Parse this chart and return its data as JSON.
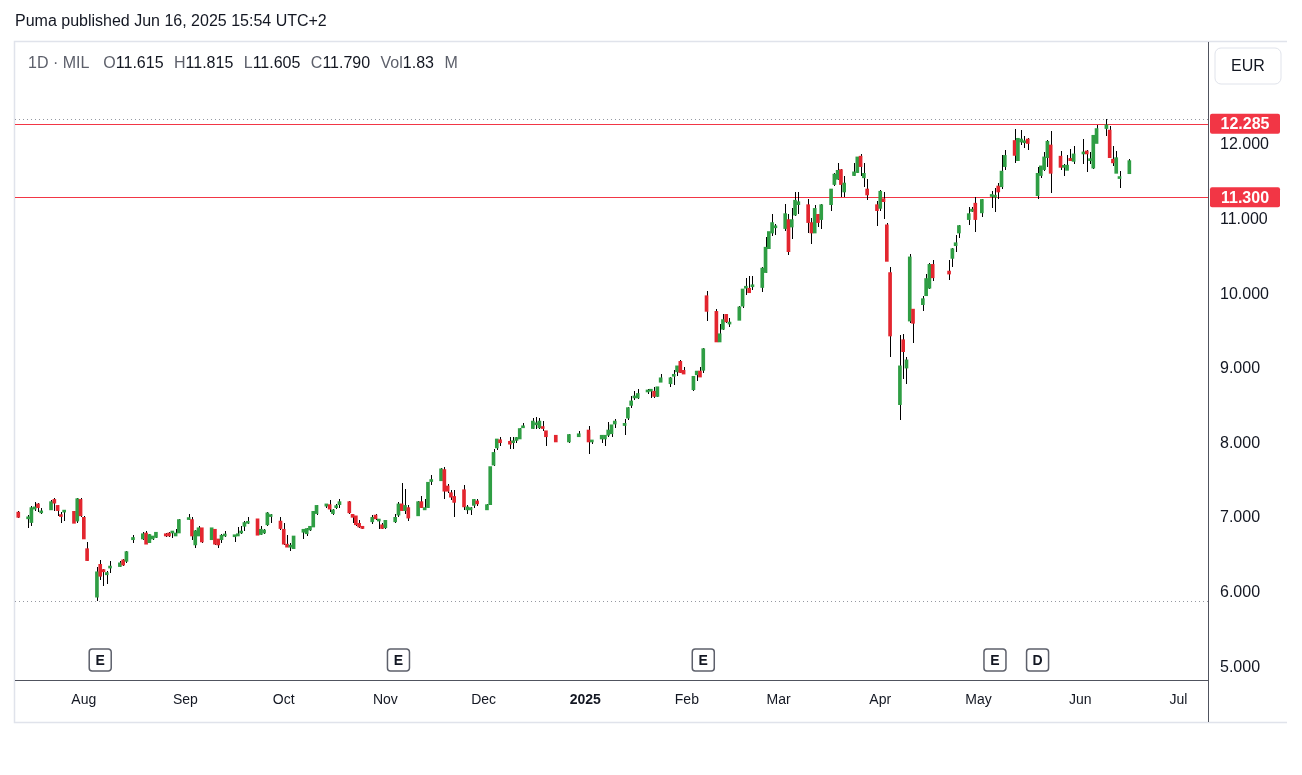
{
  "chart_data": {
    "type": "candlestick",
    "title": "1D · MIL",
    "subtitle": "O11.615 H11.815 L11.605 C11.790 Vol1.83 M",
    "ylabel": "EUR",
    "annotations": [
      "Puma published Jun 16, 2025 15:54 UTC+2",
      {
        "text": "E",
        "x": "2024-08-06"
      },
      {
        "text": "E",
        "x": "2024-11-05"
      },
      {
        "text": "E",
        "x": "2025-02-06"
      },
      {
        "text": "E",
        "x": "2025-05-06"
      },
      {
        "text": "D",
        "x": "2025-05-19"
      }
    ],
    "x": [
      "2024-07-12",
      "2024-07-15",
      "2024-07-16",
      "2024-07-17",
      "2024-07-18",
      "2024-07-19",
      "2024-07-22",
      "2024-07-23",
      "2024-07-24",
      "2024-07-25",
      "2024-07-26",
      "2024-07-29",
      "2024-07-30",
      "2024-07-31",
      "2024-08-01",
      "2024-08-02",
      "2024-08-05",
      "2024-08-06",
      "2024-08-07",
      "2024-08-08",
      "2024-08-09",
      "2024-08-12",
      "2024-08-13",
      "2024-08-14",
      "2024-08-16",
      "2024-08-19",
      "2024-08-20",
      "2024-08-21",
      "2024-08-22",
      "2024-08-23",
      "2024-08-26",
      "2024-08-27",
      "2024-08-28",
      "2024-08-29",
      "2024-08-30",
      "2024-09-02",
      "2024-09-03",
      "2024-09-04",
      "2024-09-05",
      "2024-09-06",
      "2024-09-09",
      "2024-09-10",
      "2024-09-11",
      "2024-09-12",
      "2024-09-13",
      "2024-09-16",
      "2024-09-17",
      "2024-09-18",
      "2024-09-19",
      "2024-09-20",
      "2024-09-23",
      "2024-09-24",
      "2024-09-25",
      "2024-09-26",
      "2024-09-27",
      "2024-09-30",
      "2024-10-01",
      "2024-10-02",
      "2024-10-03",
      "2024-10-04",
      "2024-10-07",
      "2024-10-08",
      "2024-10-09",
      "2024-10-10",
      "2024-10-11",
      "2024-10-14",
      "2024-10-15",
      "2024-10-16",
      "2024-10-17",
      "2024-10-18",
      "2024-10-21",
      "2024-10-22",
      "2024-10-23",
      "2024-10-24",
      "2024-10-25",
      "2024-10-28",
      "2024-10-29",
      "2024-10-30",
      "2024-10-31",
      "2024-11-01",
      "2024-11-04",
      "2024-11-05",
      "2024-11-06",
      "2024-11-07",
      "2024-11-08",
      "2024-11-11",
      "2024-11-12",
      "2024-11-13",
      "2024-11-14",
      "2024-11-15",
      "2024-11-18",
      "2024-11-19",
      "2024-11-20",
      "2024-11-21",
      "2024-11-22",
      "2024-11-25",
      "2024-11-26",
      "2024-11-27",
      "2024-11-28",
      "2024-11-29",
      "2024-12-02",
      "2024-12-03",
      "2024-12-04",
      "2024-12-05",
      "2024-12-06",
      "2024-12-09",
      "2024-12-10",
      "2024-12-11",
      "2024-12-12",
      "2024-12-13",
      "2024-12-16",
      "2024-12-17",
      "2024-12-18",
      "2024-12-19",
      "2024-12-20",
      "2024-12-23",
      "2024-12-27",
      "2024-12-30",
      "2025-01-02",
      "2025-01-03",
      "2025-01-06",
      "2025-01-07",
      "2025-01-08",
      "2025-01-09",
      "2025-01-10",
      "2025-01-13",
      "2025-01-14",
      "2025-01-15",
      "2025-01-16",
      "2025-01-17",
      "2025-01-20",
      "2025-01-21",
      "2025-01-22",
      "2025-01-23",
      "2025-01-24",
      "2025-01-27",
      "2025-01-28",
      "2025-01-29",
      "2025-01-30",
      "2025-01-31",
      "2025-02-03",
      "2025-02-04",
      "2025-02-05",
      "2025-02-06",
      "2025-02-07",
      "2025-02-10",
      "2025-02-11",
      "2025-02-12",
      "2025-02-13",
      "2025-02-14",
      "2025-02-17",
      "2025-02-18",
      "2025-02-19",
      "2025-02-20",
      "2025-02-21",
      "2025-02-24",
      "2025-02-25",
      "2025-02-26",
      "2025-02-27",
      "2025-02-28",
      "2025-03-03",
      "2025-03-04",
      "2025-03-05",
      "2025-03-06",
      "2025-03-07",
      "2025-03-10",
      "2025-03-11",
      "2025-03-12",
      "2025-03-13",
      "2025-03-14",
      "2025-03-17",
      "2025-03-18",
      "2025-03-19",
      "2025-03-20",
      "2025-03-21",
      "2025-03-24",
      "2025-03-25",
      "2025-03-26",
      "2025-03-27",
      "2025-03-28",
      "2025-03-31",
      "2025-04-01",
      "2025-04-02",
      "2025-04-03",
      "2025-04-04",
      "2025-04-07",
      "2025-04-08",
      "2025-04-09",
      "2025-04-10",
      "2025-04-11",
      "2025-04-14",
      "2025-04-15",
      "2025-04-16",
      "2025-04-17",
      "2025-04-22",
      "2025-04-23",
      "2025-04-24",
      "2025-04-25",
      "2025-04-28",
      "2025-04-29",
      "2025-04-30",
      "2025-05-02",
      "2025-05-05",
      "2025-05-06",
      "2025-05-07",
      "2025-05-08",
      "2025-05-09",
      "2025-05-12",
      "2025-05-13",
      "2025-05-14",
      "2025-05-15",
      "2025-05-16",
      "2025-05-19",
      "2025-05-20",
      "2025-05-21",
      "2025-05-22",
      "2025-05-23",
      "2025-05-26",
      "2025-05-27",
      "2025-05-28",
      "2025-05-29",
      "2025-05-30",
      "2025-06-02",
      "2025-06-03",
      "2025-06-04",
      "2025-06-05",
      "2025-06-06",
      "2025-06-09",
      "2025-06-10",
      "2025-06-11",
      "2025-06-12",
      "2025-06-13",
      "2025-06-16"
    ],
    "ohlc": [
      [
        7.08,
        7.09,
        7.0,
        7.01
      ],
      [
        6.99,
        7.04,
        6.87,
        7.0
      ],
      [
        6.94,
        7.16,
        6.9,
        7.14
      ],
      [
        7.12,
        7.21,
        7.1,
        7.15
      ],
      [
        7.19,
        7.2,
        7.08,
        7.14
      ],
      [
        7.07,
        7.14,
        7.06,
        7.08
      ],
      [
        7.11,
        7.24,
        7.11,
        7.22
      ],
      [
        7.25,
        7.27,
        7.1,
        7.2
      ],
      [
        7.17,
        7.17,
        7.03,
        7.1
      ],
      [
        7.03,
        7.08,
        6.93,
        7.02
      ],
      [
        7.08,
        7.09,
        6.96,
        7.09
      ],
      [
        7.09,
        7.1,
        6.93,
        6.93
      ],
      [
        6.96,
        7.27,
        6.93,
        7.26
      ],
      [
        7.25,
        7.27,
        7.02,
        7.03
      ],
      [
        7.01,
        7.03,
        6.72,
        6.72
      ],
      [
        6.59,
        6.68,
        6.42,
        6.43
      ],
      [
        5.94,
        6.34,
        5.89,
        6.28
      ],
      [
        6.38,
        6.44,
        6.17,
        6.22
      ],
      [
        6.31,
        6.32,
        6.09,
        6.28
      ],
      [
        6.24,
        6.29,
        6.11,
        6.27
      ],
      [
        6.33,
        6.42,
        6.27,
        6.34
      ],
      [
        6.35,
        6.42,
        6.34,
        6.4
      ],
      [
        6.44,
        6.45,
        6.36,
        6.37
      ],
      [
        6.42,
        6.56,
        6.4,
        6.55
      ],
      [
        6.71,
        6.77,
        6.67,
        6.74
      ],
      [
        6.72,
        6.82,
        6.71,
        6.79
      ],
      [
        6.8,
        6.83,
        6.65,
        6.65
      ],
      [
        6.67,
        6.78,
        6.66,
        6.78
      ],
      [
        6.72,
        6.76,
        6.71,
        6.76
      ],
      [
        6.74,
        6.82,
        6.73,
        6.81
      ],
      [
        6.79,
        6.8,
        6.75,
        6.76
      ],
      [
        6.8,
        6.81,
        6.75,
        6.76
      ],
      [
        6.8,
        6.81,
        6.73,
        6.8
      ],
      [
        6.76,
        6.85,
        6.76,
        6.8
      ],
      [
        6.8,
        6.99,
        6.8,
        6.98
      ],
      [
        6.98,
        7.06,
        6.98,
        6.99
      ],
      [
        6.98,
        7.02,
        6.7,
        6.76
      ],
      [
        6.64,
        6.84,
        6.6,
        6.83
      ],
      [
        6.76,
        6.89,
        6.76,
        6.87
      ],
      [
        6.87,
        6.87,
        6.67,
        6.68
      ],
      [
        6.71,
        6.87,
        6.7,
        6.87
      ],
      [
        6.85,
        6.85,
        6.64,
        6.65
      ],
      [
        6.72,
        6.72,
        6.6,
        6.64
      ],
      [
        6.71,
        6.78,
        6.67,
        6.77
      ],
      [
        6.76,
        6.83,
        6.75,
        6.77
      ],
      [
        6.75,
        6.76,
        6.68,
        6.75
      ],
      [
        6.76,
        6.88,
        6.76,
        6.79
      ],
      [
        6.8,
        6.89,
        6.79,
        6.8
      ],
      [
        6.89,
        6.96,
        6.83,
        6.94
      ],
      [
        6.93,
        7.01,
        6.92,
        6.94
      ],
      [
        6.99,
        6.99,
        6.77,
        6.77
      ],
      [
        6.78,
        6.89,
        6.77,
        6.85
      ],
      [
        6.8,
        6.86,
        6.79,
        6.84
      ],
      [
        6.91,
        7.08,
        6.89,
        7.07
      ],
      [
        7.02,
        7.05,
        6.94,
        7.02
      ],
      [
        6.96,
        7.01,
        6.84,
        6.86
      ],
      [
        6.85,
        6.93,
        6.64,
        6.65
      ],
      [
        6.65,
        6.77,
        6.61,
        6.61
      ],
      [
        6.61,
        6.67,
        6.56,
        6.61
      ],
      [
        6.59,
        6.76,
        6.58,
        6.76
      ],
      [
        6.81,
        6.86,
        6.72,
        6.85
      ],
      [
        6.79,
        6.87,
        6.76,
        6.86
      ],
      [
        6.84,
        6.9,
        6.83,
        6.89
      ],
      [
        6.88,
        7.09,
        6.88,
        7.09
      ],
      [
        7.06,
        7.18,
        7.04,
        7.17
      ],
      [
        7.16,
        7.19,
        7.14,
        7.19
      ],
      [
        7.18,
        7.24,
        7.08,
        7.12
      ],
      [
        7.06,
        7.12,
        7.04,
        7.11
      ],
      [
        7.14,
        7.19,
        7.12,
        7.14
      ],
      [
        7.18,
        7.26,
        7.14,
        7.22
      ],
      [
        7.22,
        7.23,
        7.06,
        7.07
      ],
      [
        7.05,
        7.05,
        6.93,
        7.01
      ],
      [
        7.03,
        7.03,
        6.9,
        6.91
      ],
      [
        6.93,
        6.98,
        6.87,
        6.88
      ],
      [
        6.89,
        6.9,
        6.85,
        6.86
      ],
      [
        6.95,
        7.04,
        6.92,
        7.01
      ],
      [
        7.04,
        7.06,
        6.98,
        6.99
      ],
      [
        6.96,
        6.97,
        6.86,
        6.96
      ],
      [
        6.91,
        6.94,
        6.85,
        6.86
      ],
      [
        6.87,
        6.98,
        6.86,
        6.97
      ],
      [
        6.95,
        7.05,
        6.94,
        7.01
      ],
      [
        7.04,
        7.22,
        7.02,
        7.19
      ],
      [
        7.19,
        7.47,
        7.1,
        7.1
      ],
      [
        7.1,
        7.39,
        7.06,
        7.17
      ],
      [
        7.14,
        7.17,
        6.96,
        7.0
      ],
      [
        7.03,
        7.23,
        7.03,
        7.22
      ],
      [
        7.22,
        7.3,
        7.14,
        7.14
      ],
      [
        7.11,
        7.26,
        7.11,
        7.14
      ],
      [
        7.14,
        7.48,
        7.14,
        7.48
      ],
      [
        7.49,
        7.58,
        7.44,
        7.5
      ],
      [
        7.5,
        7.67,
        7.5,
        7.66
      ],
      [
        7.65,
        7.68,
        7.25,
        7.36
      ],
      [
        7.43,
        7.46,
        7.33,
        7.36
      ],
      [
        7.34,
        7.37,
        7.24,
        7.28
      ],
      [
        7.29,
        7.37,
        7.02,
        7.21
      ],
      [
        7.38,
        7.44,
        7.11,
        7.15
      ],
      [
        7.11,
        7.18,
        7.06,
        7.15
      ],
      [
        7.11,
        7.15,
        7.04,
        7.14
      ],
      [
        7.17,
        7.25,
        7.14,
        7.25
      ],
      [
        7.23,
        7.25,
        7.16,
        7.19
      ],
      [
        7.11,
        7.19,
        7.11,
        7.18
      ],
      [
        7.18,
        7.69,
        7.18,
        7.69
      ],
      [
        7.71,
        7.92,
        7.7,
        7.88
      ],
      [
        7.94,
        8.06,
        7.91,
        8.06
      ],
      [
        8.05,
        8.08,
        7.97,
        8.01
      ],
      [
        8.03,
        8.09,
        7.92,
        7.99
      ],
      [
        8.01,
        8.09,
        7.92,
        8.02
      ],
      [
        8.04,
        8.09,
        8.01,
        8.08
      ],
      [
        8.06,
        8.21,
        8.06,
        8.2
      ],
      [
        8.21,
        8.27,
        8.21,
        8.22
      ],
      [
        8.2,
        8.34,
        8.2,
        8.3
      ],
      [
        8.25,
        8.36,
        8.2,
        8.26
      ],
      [
        8.21,
        8.34,
        8.2,
        8.3
      ],
      [
        8.21,
        8.3,
        8.17,
        8.2
      ],
      [
        8.17,
        8.17,
        7.96,
        8.09
      ],
      [
        8.11,
        8.11,
        8.02,
        8.02
      ],
      [
        8.02,
        8.13,
        8.01,
        8.12
      ],
      [
        8.09,
        8.17,
        8.08,
        8.13
      ],
      [
        8.18,
        8.23,
        7.86,
        8.02
      ],
      [
        8.02,
        8.05,
        7.99,
        8.03
      ],
      [
        8.06,
        8.11,
        8.0,
        8.11
      ],
      [
        8.06,
        8.11,
        7.96,
        8.11
      ],
      [
        8.11,
        8.29,
        8.09,
        8.18
      ],
      [
        8.13,
        8.25,
        8.08,
        8.25
      ],
      [
        8.26,
        8.33,
        8.21,
        8.3
      ],
      [
        8.24,
        8.33,
        8.11,
        8.27
      ],
      [
        8.34,
        8.49,
        8.31,
        8.48
      ],
      [
        8.51,
        8.63,
        8.48,
        8.57
      ],
      [
        8.61,
        8.7,
        8.58,
        8.62
      ],
      [
        8.61,
        8.73,
        8.6,
        8.67
      ],
      [
        8.69,
        8.73,
        8.66,
        8.7
      ],
      [
        8.7,
        8.73,
        8.61,
        8.7
      ],
      [
        8.7,
        8.76,
        8.61,
        8.63
      ],
      [
        8.63,
        8.76,
        8.62,
        8.76
      ],
      [
        8.82,
        8.93,
        8.82,
        8.88
      ],
      [
        8.8,
        8.89,
        8.76,
        8.88
      ],
      [
        8.9,
        8.98,
        8.78,
        8.91
      ],
      [
        8.96,
        9.04,
        8.9,
        9.04
      ],
      [
        9.1,
        9.12,
        8.94,
        8.95
      ],
      [
        8.98,
        9.03,
        8.93,
        8.93
      ],
      [
        8.72,
        8.91,
        8.7,
        8.9
      ],
      [
        8.92,
        8.97,
        8.84,
        8.97
      ],
      [
        8.97,
        9.03,
        8.89,
        8.89
      ],
      [
        8.98,
        9.28,
        8.94,
        9.27
      ],
      [
        9.98,
        10.04,
        9.64,
        9.77
      ],
      [
        9.77,
        9.8,
        9.36,
        9.36
      ],
      [
        9.36,
        9.6,
        9.36,
        9.47
      ],
      [
        9.53,
        9.74,
        9.52,
        9.66
      ],
      [
        9.73,
        9.73,
        9.61,
        9.63
      ],
      [
        9.6,
        9.68,
        9.56,
        9.61
      ],
      [
        9.65,
        9.84,
        9.65,
        9.83
      ],
      [
        9.84,
        10.07,
        9.82,
        10.07
      ],
      [
        10.08,
        10.22,
        9.99,
        10.08
      ],
      [
        10.08,
        10.24,
        10.01,
        10.02
      ],
      [
        10.1,
        10.24,
        10.06,
        10.1
      ],
      [
        10.09,
        10.37,
        10.03,
        10.35
      ],
      [
        10.29,
        10.77,
        10.29,
        10.63
      ],
      [
        10.61,
        10.84,
        10.61,
        10.84
      ],
      [
        10.82,
        11.08,
        10.78,
        10.96
      ],
      [
        10.89,
        10.94,
        10.8,
        10.89
      ],
      [
        10.88,
        11.21,
        10.85,
        11.08
      ],
      [
        11.0,
        11.07,
        10.52,
        10.57
      ],
      [
        10.9,
        11.15,
        10.74,
        11.0
      ],
      [
        11.06,
        11.37,
        11.05,
        11.26
      ],
      [
        11.2,
        11.37,
        11.07,
        11.24
      ],
      [
        11.2,
        11.28,
        10.82,
        10.96
      ],
      [
        10.96,
        11.02,
        10.67,
        10.82
      ],
      [
        10.82,
        11.2,
        10.82,
        11.15
      ],
      [
        11.07,
        11.07,
        10.9,
        10.96
      ],
      [
        11.0,
        11.21,
        10.87,
        11.2
      ],
      [
        11.2,
        11.41,
        11.11,
        11.41
      ],
      [
        11.47,
        11.63,
        11.45,
        11.61
      ],
      [
        11.54,
        11.76,
        11.53,
        11.66
      ],
      [
        11.67,
        11.68,
        11.3,
        11.47
      ],
      [
        11.37,
        11.58,
        11.3,
        11.49
      ],
      [
        11.59,
        11.76,
        11.58,
        11.64
      ],
      [
        11.63,
        11.84,
        11.63,
        11.84
      ],
      [
        11.85,
        11.88,
        11.59,
        11.71
      ],
      [
        11.56,
        11.76,
        11.44,
        11.62
      ],
      [
        11.41,
        11.54,
        11.26,
        11.33
      ],
      [
        11.2,
        11.25,
        10.91,
        11.12
      ],
      [
        11.15,
        11.39,
        11.11,
        11.38
      ],
      [
        11.28,
        11.37,
        11.01,
        11.24
      ],
      [
        10.93,
        10.95,
        10.44,
        10.44
      ],
      [
        10.29,
        10.36,
        9.16,
        9.44
      ],
      [
        8.52,
        9.45,
        8.31,
        9.04
      ],
      [
        9.39,
        9.47,
        8.87,
        9.23
      ],
      [
        9.01,
        9.16,
        8.8,
        9.12
      ],
      [
        9.64,
        10.54,
        9.61,
        10.5
      ],
      [
        9.8,
        9.8,
        9.35,
        9.61
      ],
      [
        9.86,
        9.97,
        9.77,
        9.94
      ],
      [
        9.98,
        10.27,
        9.98,
        10.21
      ],
      [
        10.08,
        10.42,
        10.07,
        10.4
      ],
      [
        10.4,
        10.46,
        10.18,
        10.22
      ],
      [
        10.31,
        10.46,
        10.19,
        10.27
      ],
      [
        10.48,
        10.62,
        10.37,
        10.61
      ],
      [
        10.65,
        10.79,
        10.57,
        10.69
      ],
      [
        10.82,
        10.93,
        10.75,
        10.92
      ],
      [
        11.0,
        11.17,
        10.93,
        11.08
      ],
      [
        11.11,
        11.17,
        11.1,
        11.14
      ],
      [
        11.22,
        11.3,
        10.84,
        11.0
      ],
      [
        11.09,
        11.28,
        11.04,
        11.27
      ],
      [
        11.31,
        11.38,
        11.16,
        11.31
      ],
      [
        11.3,
        11.42,
        11.1,
        11.31
      ],
      [
        11.45,
        11.49,
        11.27,
        11.37
      ],
      [
        11.44,
        11.87,
        11.41,
        11.65
      ],
      [
        11.71,
        11.93,
        11.66,
        11.86
      ],
      [
        12.06,
        12.21,
        11.76,
        11.86
      ],
      [
        11.79,
        12.09,
        11.78,
        12.09
      ],
      [
        12.04,
        12.2,
        12.0,
        12.08
      ],
      [
        12.03,
        12.12,
        11.96,
        12.04
      ],
      [
        12.08,
        12.1,
        11.93,
        12.02
      ],
      [
        11.32,
        11.71,
        11.28,
        11.62
      ],
      [
        11.59,
        11.72,
        11.56,
        11.72
      ],
      [
        11.67,
        11.9,
        11.65,
        11.84
      ],
      [
        11.83,
        12.06,
        11.71,
        12.05
      ],
      [
        12.0,
        12.19,
        11.36,
        11.62
      ],
      [
        11.85,
        11.92,
        11.66,
        11.7
      ],
      [
        11.7,
        11.74,
        11.59,
        11.71
      ],
      [
        11.66,
        11.87,
        11.66,
        11.73
      ],
      [
        11.82,
        11.94,
        11.78,
        11.79
      ],
      [
        11.78,
        11.99,
        11.75,
        11.88
      ],
      [
        11.88,
        12.08,
        11.75,
        11.88
      ],
      [
        11.92,
        11.93,
        11.64,
        11.88
      ],
      [
        11.79,
        11.91,
        11.75,
        11.8
      ],
      [
        11.69,
        12.13,
        11.68,
        12.13
      ],
      [
        12.02,
        12.27,
        12.02,
        12.22
      ],
      [
        12.22,
        12.35,
        12.12,
        12.27
      ],
      [
        12.2,
        12.25,
        11.83,
        11.83
      ],
      [
        11.81,
        11.98,
        11.72,
        11.76
      ],
      [
        11.62,
        11.92,
        11.62,
        11.83
      ],
      [
        11.55,
        11.65,
        11.42,
        11.56
      ],
      [
        11.615,
        11.815,
        11.605,
        11.79
      ]
    ],
    "xlim": [
      "2024-07-11",
      "2025-07-10"
    ],
    "xticks": [
      {
        "value": "2024-08-01",
        "label": "Aug"
      },
      {
        "value": "2024-09-01",
        "label": "Sep"
      },
      {
        "value": "2024-10-01",
        "label": "Oct"
      },
      {
        "value": "2024-11-01",
        "label": "Nov"
      },
      {
        "value": "2024-12-01",
        "label": "Dec"
      },
      {
        "value": "2025-01-01",
        "label": "2025"
      },
      {
        "value": "2025-02-01",
        "label": "Feb"
      },
      {
        "value": "2025-03-01",
        "label": "Mar"
      },
      {
        "value": "2025-04-01",
        "label": "Apr"
      },
      {
        "value": "2025-05-01",
        "label": "May"
      },
      {
        "value": "2025-06-01",
        "label": "Jun"
      },
      {
        "value": "2025-07-01",
        "label": "Jul"
      }
    ],
    "ylim": [
      4.83,
      13.38
    ],
    "yticks": [
      {
        "value": 5,
        "label": "5.000"
      },
      {
        "value": 6,
        "label": "6.000"
      },
      {
        "value": 7,
        "label": "7.000"
      },
      {
        "value": 8,
        "label": "8.000"
      },
      {
        "value": 9,
        "label": "9.000"
      },
      {
        "value": 10,
        "label": "10.000"
      },
      {
        "value": 11,
        "label": "11.000"
      },
      {
        "value": 12,
        "label": "12.000"
      }
    ],
    "ref_lines": [
      {
        "axis": "y",
        "value": 12.285,
        "label": "12.285",
        "color": "#f23645",
        "line_style": "solid"
      },
      {
        "axis": "y",
        "value": 11.3,
        "label": "11.300",
        "color": "#f23645",
        "line_style": "solid"
      },
      {
        "axis": "y",
        "value": 12.35,
        "color": "#9598a1",
        "line_style": "dotted"
      },
      {
        "axis": "y",
        "value": 5.89,
        "color": "#9598a1",
        "line_style": "dotted"
      }
    ],
    "grid": false
  }
}
